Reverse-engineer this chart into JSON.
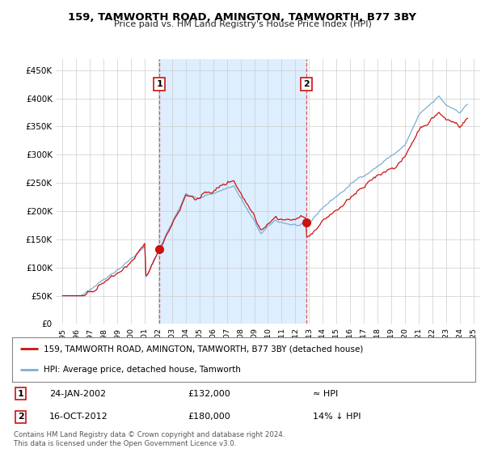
{
  "title": "159, TAMWORTH ROAD, AMINGTON, TAMWORTH, B77 3BY",
  "subtitle": "Price paid vs. HM Land Registry's House Price Index (HPI)",
  "hpi_color": "#7bafd4",
  "price_color": "#cc1111",
  "marker_color": "#cc1111",
  "vline_color": "#dd4444",
  "background_color": "#ffffff",
  "plot_bg_color": "#ffffff",
  "shade_color": "#ddeeff",
  "legend_label_red": "159, TAMWORTH ROAD, AMINGTON, TAMWORTH, B77 3BY (detached house)",
  "legend_label_blue": "HPI: Average price, detached house, Tamworth",
  "sale1_date": "24-JAN-2002",
  "sale1_price": "£132,000",
  "sale1_note": "≈ HPI",
  "sale1_year": 2002.08,
  "sale1_value": 132000,
  "sale2_date": "16-OCT-2012",
  "sale2_price": "£180,000",
  "sale2_note": "14% ↓ HPI",
  "sale2_year": 2012.79,
  "sale2_value": 180000,
  "footer": "Contains HM Land Registry data © Crown copyright and database right 2024.\nThis data is licensed under the Open Government Licence v3.0.",
  "ylim": [
    0,
    470000
  ],
  "yticks": [
    0,
    50000,
    100000,
    150000,
    200000,
    250000,
    300000,
    350000,
    400000,
    450000
  ],
  "ytick_labels": [
    "£0",
    "£50K",
    "£100K",
    "£150K",
    "£200K",
    "£250K",
    "£300K",
    "£350K",
    "£400K",
    "£450K"
  ],
  "xtick_years": [
    1995,
    1996,
    1997,
    1998,
    1999,
    2000,
    2001,
    2002,
    2003,
    2004,
    2005,
    2006,
    2007,
    2008,
    2009,
    2010,
    2011,
    2012,
    2013,
    2014,
    2015,
    2016,
    2017,
    2018,
    2019,
    2020,
    2021,
    2022,
    2023,
    2024,
    2025
  ]
}
